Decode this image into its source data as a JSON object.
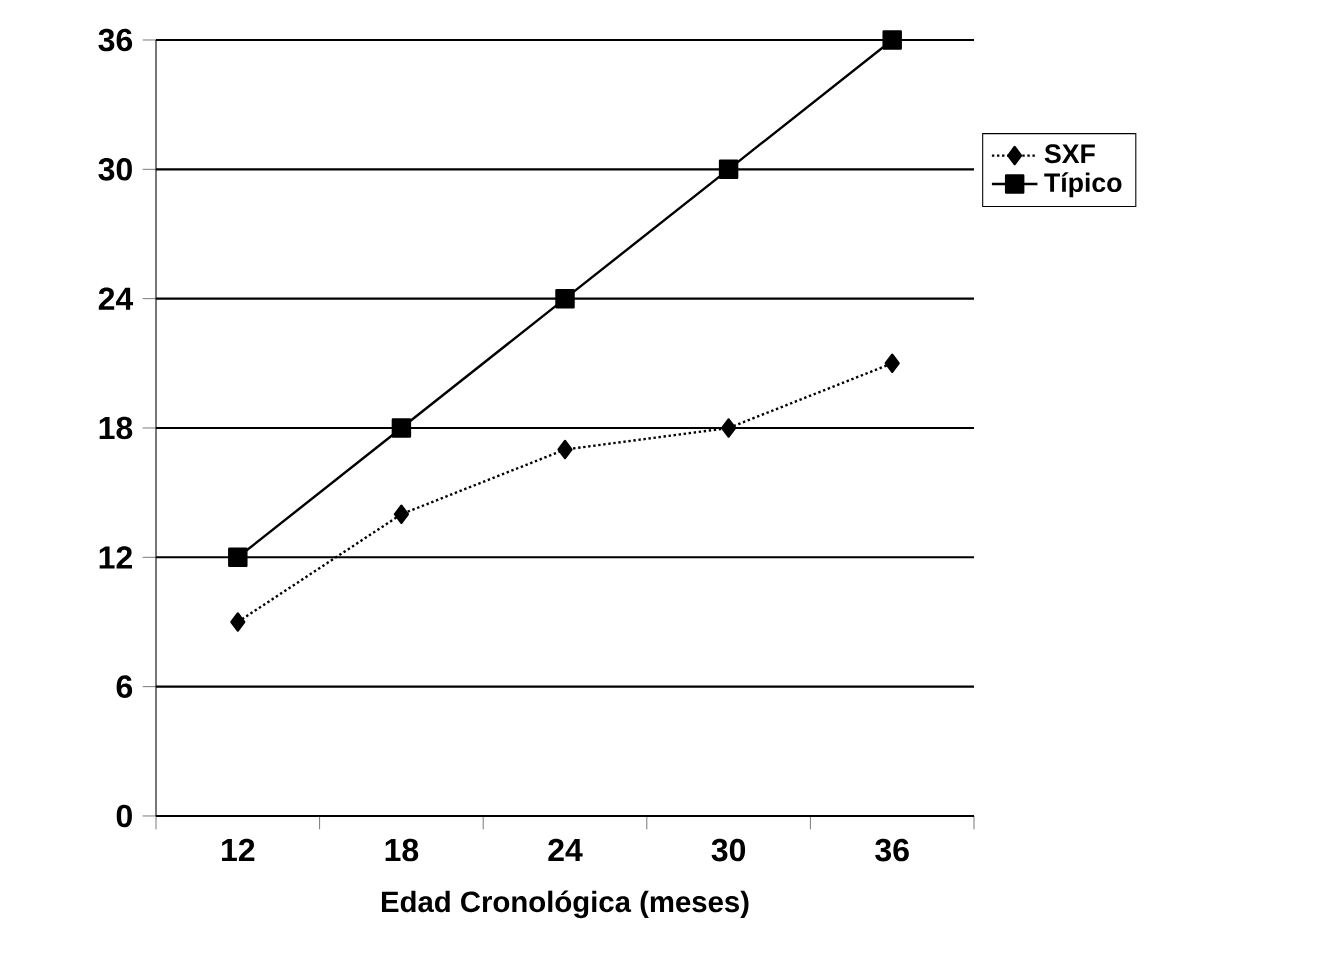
{
  "chart_data": {
    "type": "line",
    "xlabel": "Edad Cronológica (meses)",
    "categories": [
      "12",
      "18",
      "24",
      "30",
      "36"
    ],
    "series": [
      {
        "name": "SXF",
        "color": "#000000",
        "values": [
          9,
          14,
          17,
          18,
          21
        ],
        "marker": "diamond",
        "line_style": "dotted"
      },
      {
        "name": "Típico",
        "color": "#000000",
        "values": [
          12,
          18,
          24,
          30,
          36
        ],
        "marker": "square",
        "line_style": "solid"
      }
    ],
    "ylim": [
      0,
      36
    ],
    "yticks": [
      0,
      6,
      12,
      18,
      24,
      30,
      36
    ],
    "grid": "y",
    "legend": "right"
  }
}
